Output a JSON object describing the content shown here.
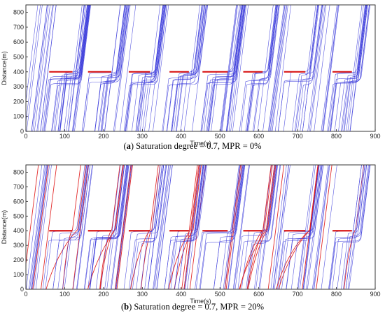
{
  "chart_data": [
    {
      "type": "line",
      "panel": "a",
      "caption_tag": "a",
      "caption_text": " Saturation degree = 0.7, MPR = 0%",
      "xlabel": "Time(s)",
      "ylabel": "Distance(m)",
      "xlim": [
        0,
        900
      ],
      "ylim": [
        0,
        850
      ],
      "xticks": [
        0,
        100,
        200,
        300,
        400,
        500,
        600,
        700,
        800,
        900
      ],
      "yticks": [
        0,
        100,
        200,
        300,
        400,
        500,
        600,
        700,
        800
      ],
      "stop_line": 400,
      "colors": {
        "human": "#3a3adb",
        "cav": "#e02020",
        "stop_line": "#d81818"
      },
      "red_phases": [
        [
          60,
          120
        ],
        [
          160,
          220
        ],
        [
          265,
          320
        ],
        [
          370,
          420
        ],
        [
          455,
          520
        ],
        [
          560,
          610
        ],
        [
          665,
          720
        ],
        [
          790,
          840
        ]
      ],
      "release_times": [
        120,
        220,
        320,
        420,
        520,
        610,
        720,
        840
      ],
      "series": [
        {
          "vehicle": "human",
          "vehicles_count": 150
        }
      ]
    },
    {
      "type": "line",
      "panel": "b",
      "caption_tag": "b",
      "caption_text": " Saturation degree = 0.7, MPR = 20%",
      "xlabel": "Time(s)",
      "ylabel": "Distance(m)",
      "xlim": [
        0,
        900
      ],
      "ylim": [
        0,
        850
      ],
      "xticks": [
        0,
        100,
        200,
        300,
        400,
        500,
        600,
        700,
        800,
        900
      ],
      "yticks": [
        0,
        100,
        200,
        300,
        400,
        500,
        600,
        700,
        800
      ],
      "stop_line": 400,
      "colors": {
        "human": "#3a3adb",
        "cav": "#e02020",
        "stop_line": "#d81818"
      },
      "red_phases": [
        [
          60,
          120
        ],
        [
          160,
          220
        ],
        [
          265,
          320
        ],
        [
          370,
          420
        ],
        [
          455,
          520
        ],
        [
          560,
          610
        ],
        [
          665,
          720
        ],
        [
          790,
          840
        ]
      ],
      "release_times": [
        120,
        220,
        320,
        420,
        520,
        610,
        720,
        840
      ],
      "series": [
        {
          "vehicle": "human",
          "vehicles_count": 120
        },
        {
          "vehicle": "cav",
          "vehicles_count": 30
        }
      ]
    }
  ]
}
